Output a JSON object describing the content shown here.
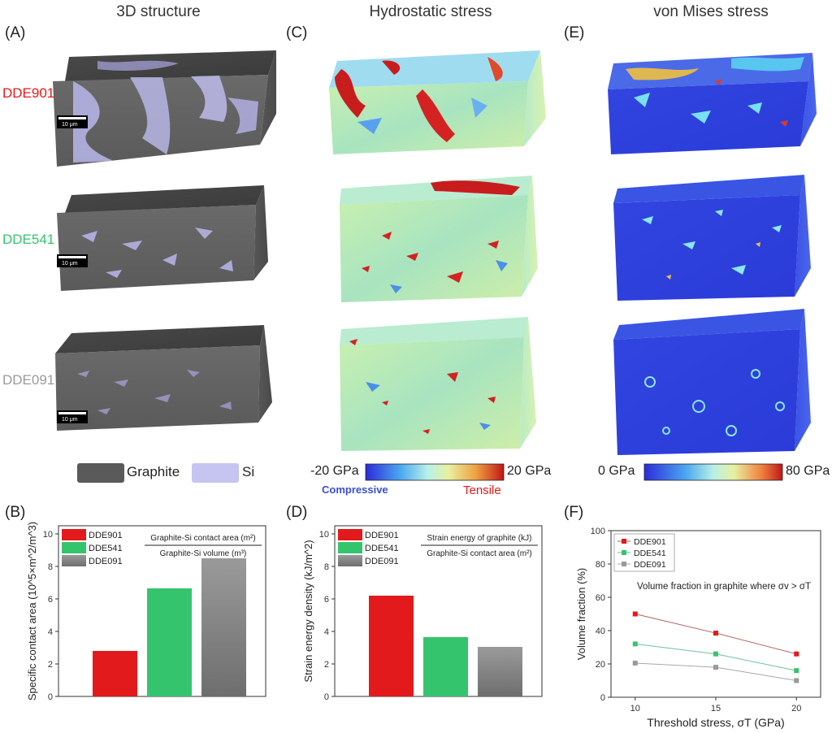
{
  "columns": {
    "col1_title": "3D structure",
    "col2_title": "Hydrostatic stress",
    "col3_title": "von Mises stress"
  },
  "panel_labels": {
    "A": "(A)",
    "B": "(B)",
    "C": "(C)",
    "D": "(D)",
    "E": "(E)",
    "F": "(F)"
  },
  "samples": [
    {
      "name": "DDE901",
      "color": "#e31a1c"
    },
    {
      "name": "DDE541",
      "color": "#35c46e"
    },
    {
      "name": "DDE091",
      "color": "#9a9a9a"
    }
  ],
  "scale_bar": "10 μm",
  "structure_legend": {
    "graphite": "Graphite",
    "si": "Si",
    "graphite_color": "#5a5a5a",
    "si_color": "#c6c4f0"
  },
  "hydro_colorbar": {
    "min": "-20 GPa",
    "max": "20 GPa",
    "left_note": "Compressive",
    "right_note": "Tensile",
    "left_note_color": "#3a4fd0",
    "right_note_color": "#e31a1c"
  },
  "vm_colorbar": {
    "min": "0 GPa",
    "max": "80 GPa"
  },
  "chart_data": [
    {
      "panel": "B",
      "type": "bar",
      "categories": [
        "DDE901",
        "DDE541",
        "DDE091"
      ],
      "values": [
        2.8,
        6.65,
        8.5
      ],
      "ylabel": "Specific contact area (10^5×m^2/m^3)",
      "ylim": [
        0,
        10.5
      ],
      "yticks": [
        "0",
        "2",
        "4",
        "6",
        "8",
        "10"
      ],
      "formula_num": "Graphite-Si contact area (m²)",
      "formula_den": "Graphite-Si volume (m³)"
    },
    {
      "panel": "D",
      "type": "bar",
      "categories": [
        "DDE901",
        "DDE541",
        "DDE091"
      ],
      "values": [
        6.2,
        3.65,
        3.05
      ],
      "ylabel": "Strain energy density (kJ/m^2)",
      "ylim": [
        0,
        10.5
      ],
      "yticks": [
        "0",
        "2",
        "4",
        "6",
        "8",
        "10"
      ],
      "formula_num": "Strain energy of graphite (kJ)",
      "formula_den": "Graphite-Si contact area (m²)"
    },
    {
      "panel": "F",
      "type": "line",
      "x": [
        10,
        15,
        20
      ],
      "series": [
        {
          "name": "DDE901",
          "values": [
            50,
            38.5,
            26
          ]
        },
        {
          "name": "DDE541",
          "values": [
            32,
            26,
            16
          ]
        },
        {
          "name": "DDE091",
          "values": [
            20.5,
            18,
            10
          ]
        }
      ],
      "xlabel": "Threshold stress, σT (GPa)",
      "ylabel": "Volume fraction (%)",
      "ylim": [
        0,
        100
      ],
      "xlim": [
        8.5,
        21.5
      ],
      "xticks": [
        "10",
        "15",
        "20"
      ],
      "yticks": [
        "0",
        "20",
        "40",
        "60",
        "80",
        "100"
      ],
      "annotation": "Volume fraction in graphite where σv > σT"
    }
  ]
}
